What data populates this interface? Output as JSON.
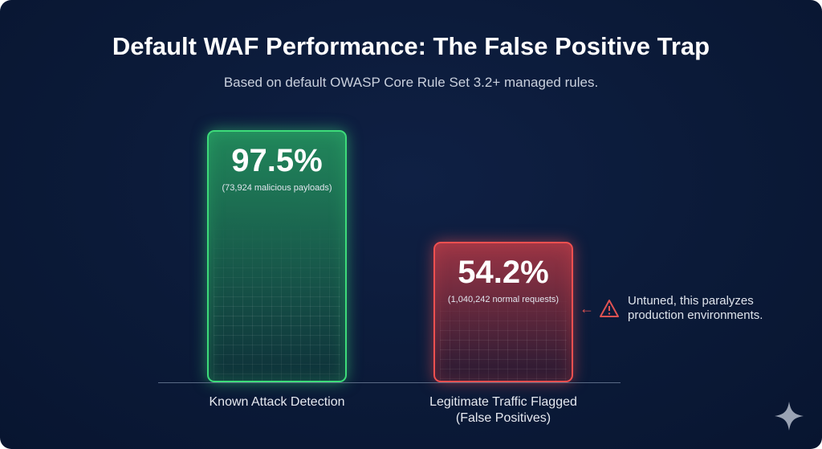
{
  "chart_data": {
    "type": "bar",
    "title": "Default WAF Performance: The False Positive Trap",
    "subtitle": "Based on default OWASP Core Rule Set 3.2+ managed rules.",
    "categories": [
      "Known Attack Detection",
      "Legitimate Traffic Flagged (False Positives)"
    ],
    "category_lines": [
      [
        "Known Attack Detection"
      ],
      [
        "Legitimate Traffic Flagged",
        "(False Positives)"
      ]
    ],
    "values": [
      97.5,
      54.2
    ],
    "value_labels": [
      "97.5%",
      "54.2%"
    ],
    "sub_labels": [
      "(73,924 malicious payloads)",
      "(1,040,242 normal requests)"
    ],
    "colors": [
      "#3ddc7a",
      "#f05050"
    ],
    "ylim": [
      0,
      100
    ],
    "xlabel": "",
    "ylabel": "",
    "grid": false,
    "annotation": {
      "line1": "Untuned, this paralyzes",
      "line2": "production environments.",
      "arrow": "←",
      "icon": "warning-triangle-icon"
    }
  },
  "branding": {
    "icon": "sparkle-icon"
  }
}
